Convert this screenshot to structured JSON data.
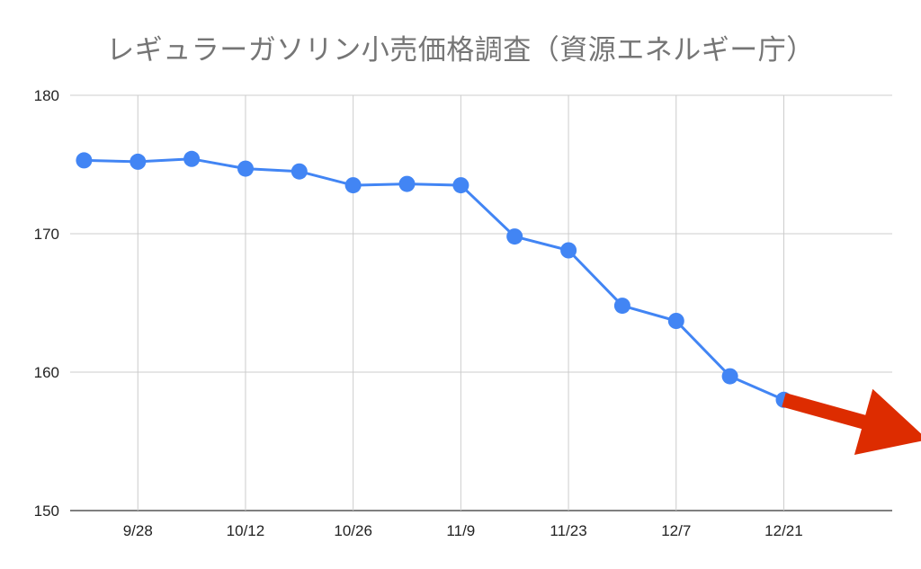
{
  "chart_data": {
    "type": "line",
    "title": "レギュラーガソリン小売価格調査（資源エネルギー庁）",
    "xlabel": "",
    "ylabel": "",
    "x_ticks": [
      "9/28",
      "10/12",
      "10/26",
      "11/9",
      "11/23",
      "12/7",
      "12/21"
    ],
    "y_ticks": [
      "150",
      "160",
      "170",
      "180"
    ],
    "ylim": [
      150,
      180
    ],
    "grid": true,
    "legend": "none",
    "series": [
      {
        "color": "#4285f4",
        "points": [
          {
            "x": "2021-09-21",
            "y": 175.3
          },
          {
            "x": "2021-09-28",
            "y": 175.2
          },
          {
            "x": "2021-10-05",
            "y": 175.4
          },
          {
            "x": "2021-10-12",
            "y": 174.7
          },
          {
            "x": "2021-10-19",
            "y": 174.5
          },
          {
            "x": "2021-10-26",
            "y": 173.5
          },
          {
            "x": "2021-11-02",
            "y": 173.6
          },
          {
            "x": "2021-11-09",
            "y": 173.5
          },
          {
            "x": "2021-11-16",
            "y": 169.8
          },
          {
            "x": "2021-11-23",
            "y": 168.8
          },
          {
            "x": "2021-11-30",
            "y": 164.8
          },
          {
            "x": "2021-12-07",
            "y": 163.7
          },
          {
            "x": "2021-12-14",
            "y": 159.7
          },
          {
            "x": "2021-12-21",
            "y": 158.0
          }
        ]
      }
    ],
    "annotation": {
      "type": "arrow",
      "color": "#dd2c00",
      "direction": "down-right"
    }
  }
}
